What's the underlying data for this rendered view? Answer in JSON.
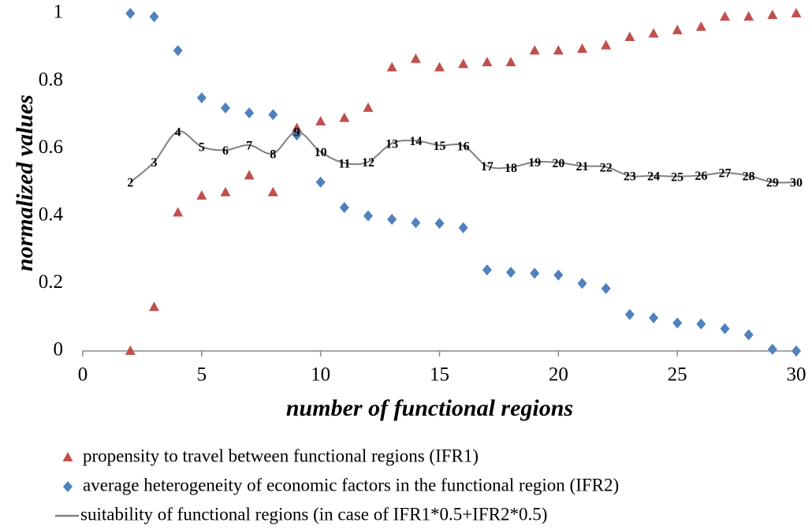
{
  "chart_data": {
    "type": "scatter",
    "x_label": "number of functional regions",
    "y_label": "normalized values",
    "x": [
      2,
      3,
      4,
      5,
      6,
      7,
      8,
      9,
      10,
      11,
      12,
      13,
      14,
      15,
      16,
      17,
      18,
      19,
      20,
      21,
      22,
      23,
      24,
      25,
      26,
      27,
      28,
      29,
      30
    ],
    "series": [
      {
        "name": "propensity to travel between functional regions (IFR1)",
        "color": "#c0504d",
        "marker": "triangle",
        "values": [
          0,
          0.13,
          0.41,
          0.46,
          0.47,
          0.52,
          0.47,
          0.66,
          0.68,
          0.69,
          0.72,
          0.84,
          0.865,
          0.84,
          0.85,
          0.855,
          0.855,
          0.89,
          0.89,
          0.895,
          0.905,
          0.93,
          0.94,
          0.95,
          0.96,
          0.99,
          0.99,
          0.995,
          1
        ]
      },
      {
        "name": "average heterogeneity of economic factors in the functional region (IFR2)",
        "color": "#4f81bd",
        "marker": "diamond",
        "values": [
          1,
          0.99,
          0.89,
          0.75,
          0.72,
          0.705,
          0.7,
          0.64,
          0.5,
          0.425,
          0.4,
          0.39,
          0.38,
          0.378,
          0.365,
          0.24,
          0.233,
          0.23,
          0.225,
          0.2,
          0.185,
          0.108,
          0.098,
          0.083,
          0.08,
          0.066,
          0.048,
          0.005,
          0
        ]
      },
      {
        "name": "suitability of functional regions (in case of IFR1*0.5+IFR2*0.5)",
        "color": "#808080",
        "marker": "line",
        "values": [
          0.5,
          0.56,
          0.65,
          0.605,
          0.595,
          0.61,
          0.585,
          0.65,
          0.59,
          0.557,
          0.56,
          0.615,
          0.623,
          0.609,
          0.608,
          0.548,
          0.544,
          0.56,
          0.558,
          0.548,
          0.545,
          0.519,
          0.519,
          0.517,
          0.52,
          0.528,
          0.519,
          0.5,
          0.5
        ]
      }
    ],
    "xlim": [
      0,
      30
    ],
    "xticks": [
      0,
      5,
      10,
      15,
      20,
      25,
      30
    ],
    "ylim": [
      0,
      1
    ],
    "yticks": [
      0,
      0.2,
      0.4,
      0.6,
      0.8,
      1
    ]
  }
}
